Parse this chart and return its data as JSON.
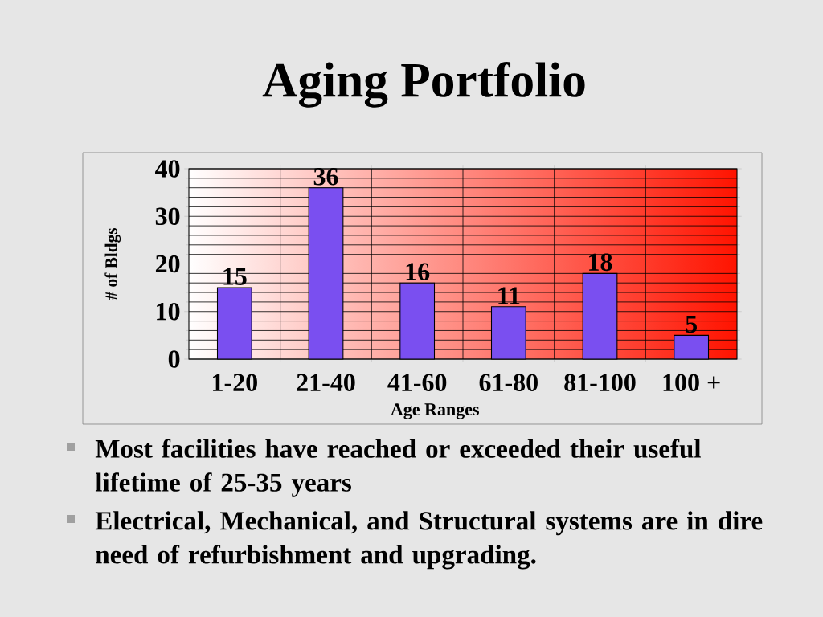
{
  "chart_data": {
    "type": "bar",
    "title": "Aging Portfolio",
    "categories": [
      "1-20",
      "21-40",
      "41-60",
      "61-80",
      "81-100",
      "100 +"
    ],
    "values": [
      15,
      36,
      16,
      11,
      18,
      5
    ],
    "color": "#7a4ff0",
    "xlabel": "Age Ranges",
    "ylabel": "# of Bldgs",
    "ylim": [
      0,
      40
    ],
    "yticks": [
      0,
      10,
      20,
      30,
      40
    ],
    "grid": true,
    "data_labels": true,
    "annotations": [
      "Most facilities have reached or exceeded their useful lifetime of 25-35 years",
      "Electrical, Mechanical, and Structural systems are in dire need of refurbishment and upgrading."
    ]
  }
}
